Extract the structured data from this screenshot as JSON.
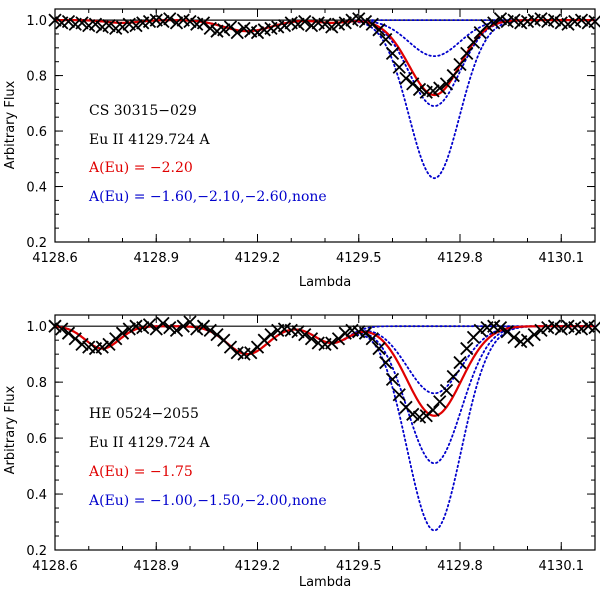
{
  "chart_data": [
    {
      "type": "line",
      "panel": "top",
      "xlabel": "Lambda",
      "ylabel": "Arbitrary Flux",
      "xlim": [
        4128.6,
        4130.2
      ],
      "ylim": [
        0.2,
        1.04
      ],
      "xticks": [
        4128.6,
        4128.9,
        4129.2,
        4129.5,
        4129.8,
        4130.1
      ],
      "xtick_labels": [
        "4128.6",
        "4128.9",
        "4129.2",
        "4129.5",
        "4129.8",
        "4130.1"
      ],
      "yticks": [
        0.2,
        0.4,
        0.6,
        0.8,
        1.0
      ],
      "ytick_labels": [
        "0.2",
        "0.4",
        "0.6",
        "0.8",
        "1.0"
      ],
      "continuum": 1.0,
      "annotations": [
        {
          "text": "CS 30315−029",
          "color": "#000000"
        },
        {
          "text": "Eu II 4129.724 A",
          "color": "#000000"
        },
        {
          "text": "A(Eu) = −2.20",
          "color": "#e00000"
        },
        {
          "text": "A(Eu) = −1.60,−2.10,−2.60,none",
          "color": "#0000cc"
        }
      ],
      "line_center": 4129.724,
      "blends": [
        {
          "center": 4128.8,
          "depth": 0.01,
          "width": 0.05
        },
        {
          "center": 4129.17,
          "depth": 0.04,
          "width": 0.07
        },
        {
          "center": 4129.42,
          "depth": 0.01,
          "width": 0.04
        }
      ],
      "best_fit": {
        "name": "A(Eu) = -2.20",
        "color": "#e00000",
        "depth": 0.27,
        "width": 0.075
      },
      "comparison_models": [
        {
          "name": "A(Eu) = -1.60",
          "color": "#0000cc",
          "depth": 0.57,
          "width": 0.075
        },
        {
          "name": "A(Eu) = -2.10",
          "color": "#0000cc",
          "depth": 0.31,
          "width": 0.075
        },
        {
          "name": "A(Eu) = -2.60",
          "color": "#0000cc",
          "depth": 0.13,
          "width": 0.075
        },
        {
          "name": "none",
          "color": "#0000cc",
          "depth": 0.0,
          "width": 0.075
        }
      ],
      "observed": {
        "marker": "x",
        "color": "#000000",
        "x": [
          4128.6,
          4128.62,
          4128.64,
          4128.66,
          4128.68,
          4128.7,
          4128.72,
          4128.74,
          4128.76,
          4128.78,
          4128.8,
          4128.82,
          4128.84,
          4128.86,
          4128.88,
          4128.9,
          4128.92,
          4128.94,
          4128.96,
          4128.98,
          4129.0,
          4129.02,
          4129.04,
          4129.06,
          4129.08,
          4129.1,
          4129.12,
          4129.14,
          4129.16,
          4129.18,
          4129.2,
          4129.22,
          4129.24,
          4129.26,
          4129.28,
          4129.3,
          4129.32,
          4129.34,
          4129.36,
          4129.38,
          4129.4,
          4129.42,
          4129.44,
          4129.46,
          4129.48,
          4129.5,
          4129.52,
          4129.54,
          4129.56,
          4129.58,
          4129.6,
          4129.62,
          4129.64,
          4129.66,
          4129.68,
          4129.7,
          4129.72,
          4129.74,
          4129.76,
          4129.78,
          4129.8,
          4129.82,
          4129.84,
          4129.86,
          4129.88,
          4129.9,
          4129.92,
          4129.94,
          4129.96,
          4129.98,
          4130.0,
          4130.02,
          4130.04,
          4130.06,
          4130.08,
          4130.1,
          4130.12,
          4130.14,
          4130.16,
          4130.18,
          4130.2
        ],
        "y": [
          1.0,
          0.99,
          0.995,
          0.985,
          0.99,
          0.98,
          0.985,
          0.975,
          0.98,
          0.97,
          0.975,
          0.985,
          0.98,
          0.99,
          0.995,
          1.0,
          0.995,
          1.005,
          0.99,
          1.0,
          0.995,
          0.985,
          0.99,
          0.97,
          0.96,
          0.965,
          0.975,
          0.955,
          0.97,
          0.96,
          0.955,
          0.965,
          0.97,
          0.975,
          0.98,
          0.99,
          0.985,
          0.995,
          0.98,
          0.99,
          0.985,
          0.975,
          0.985,
          0.99,
          1.0,
          1.005,
          0.995,
          0.985,
          0.965,
          0.93,
          0.88,
          0.83,
          0.79,
          0.77,
          0.75,
          0.74,
          0.745,
          0.755,
          0.77,
          0.8,
          0.84,
          0.88,
          0.92,
          0.955,
          0.98,
          0.99,
          1.005,
          0.995,
          1.0,
          0.99,
          0.995,
          1.0,
          1.005,
          0.995,
          1.0,
          0.99,
          0.985,
          0.995,
          1.0,
          0.99,
          0.995
        ]
      }
    },
    {
      "type": "line",
      "panel": "bottom",
      "xlabel": "Lambda",
      "ylabel": "Arbitrary Flux",
      "xlim": [
        4128.6,
        4130.2
      ],
      "ylim": [
        0.2,
        1.04
      ],
      "xticks": [
        4128.6,
        4128.9,
        4129.2,
        4129.5,
        4129.8,
        4130.1
      ],
      "xtick_labels": [
        "4128.6",
        "4128.9",
        "4129.2",
        "4129.5",
        "4129.8",
        "4130.1"
      ],
      "yticks": [
        0.2,
        0.4,
        0.6,
        0.8,
        1.0
      ],
      "ytick_labels": [
        "0.2",
        "0.4",
        "0.6",
        "0.8",
        "1.0"
      ],
      "continuum": 1.0,
      "annotations": [
        {
          "text": "HE 0524−2055",
          "color": "#000000"
        },
        {
          "text": "Eu II 4129.724 A",
          "color": "#000000"
        },
        {
          "text": "A(Eu) = −1.75",
          "color": "#e00000"
        },
        {
          "text": "A(Eu) = −1.00,−1.50,−2.00,none",
          "color": "#0000cc"
        }
      ],
      "line_center": 4129.724,
      "blends": [
        {
          "center": 4128.74,
          "depth": 0.08,
          "width": 0.05
        },
        {
          "center": 4129.17,
          "depth": 0.1,
          "width": 0.06
        },
        {
          "center": 4129.42,
          "depth": 0.06,
          "width": 0.05
        }
      ],
      "best_fit": {
        "name": "A(Eu) = -1.75",
        "color": "#e00000",
        "depth": 0.32,
        "width": 0.08
      },
      "comparison_models": [
        {
          "name": "A(Eu) = -1.00",
          "color": "#0000cc",
          "depth": 0.73,
          "width": 0.08
        },
        {
          "name": "A(Eu) = -1.50",
          "color": "#0000cc",
          "depth": 0.49,
          "width": 0.08
        },
        {
          "name": "A(Eu) = -2.00",
          "color": "#0000cc",
          "depth": 0.24,
          "width": 0.08
        },
        {
          "name": "none",
          "color": "#0000cc",
          "depth": 0.0,
          "width": 0.08
        }
      ],
      "observed": {
        "marker": "x",
        "color": "#000000",
        "x": [
          4128.6,
          4128.62,
          4128.64,
          4128.66,
          4128.68,
          4128.7,
          4128.72,
          4128.74,
          4128.76,
          4128.78,
          4128.8,
          4128.82,
          4128.84,
          4128.86,
          4128.88,
          4128.9,
          4128.92,
          4128.94,
          4128.96,
          4128.98,
          4129.0,
          4129.02,
          4129.04,
          4129.06,
          4129.08,
          4129.1,
          4129.12,
          4129.14,
          4129.16,
          4129.18,
          4129.2,
          4129.22,
          4129.24,
          4129.26,
          4129.28,
          4129.3,
          4129.32,
          4129.34,
          4129.36,
          4129.38,
          4129.4,
          4129.42,
          4129.44,
          4129.46,
          4129.48,
          4129.5,
          4129.52,
          4129.54,
          4129.56,
          4129.58,
          4129.6,
          4129.62,
          4129.64,
          4129.66,
          4129.68,
          4129.7,
          4129.72,
          4129.74,
          4129.76,
          4129.78,
          4129.8,
          4129.82,
          4129.84,
          4129.86,
          4129.88,
          4129.9,
          4129.92,
          4129.94,
          4129.96,
          4129.98,
          4130.0,
          4130.02,
          4130.04,
          4130.06,
          4130.08,
          4130.1,
          4130.12,
          4130.14,
          4130.16,
          4130.18,
          4130.2
        ],
        "y": [
          1.0,
          0.99,
          0.975,
          0.955,
          0.935,
          0.925,
          0.92,
          0.925,
          0.935,
          0.955,
          0.975,
          0.99,
          1.0,
          0.995,
          1.005,
          0.99,
          1.01,
          0.995,
          0.985,
          1.0,
          1.015,
          0.99,
          1.0,
          0.985,
          0.97,
          0.95,
          0.925,
          0.905,
          0.9,
          0.905,
          0.925,
          0.95,
          0.97,
          0.985,
          0.99,
          0.985,
          0.98,
          0.97,
          0.955,
          0.94,
          0.935,
          0.94,
          0.955,
          0.975,
          0.985,
          0.98,
          0.975,
          0.955,
          0.92,
          0.87,
          0.81,
          0.755,
          0.71,
          0.685,
          0.675,
          0.68,
          0.7,
          0.73,
          0.77,
          0.82,
          0.87,
          0.92,
          0.96,
          0.985,
          0.995,
          1.0,
          0.995,
          0.98,
          0.96,
          0.945,
          0.95,
          0.97,
          0.985,
          0.995,
          1.0,
          0.99,
          1.0,
          0.995,
          0.99,
          1.0,
          0.995
        ]
      }
    }
  ]
}
